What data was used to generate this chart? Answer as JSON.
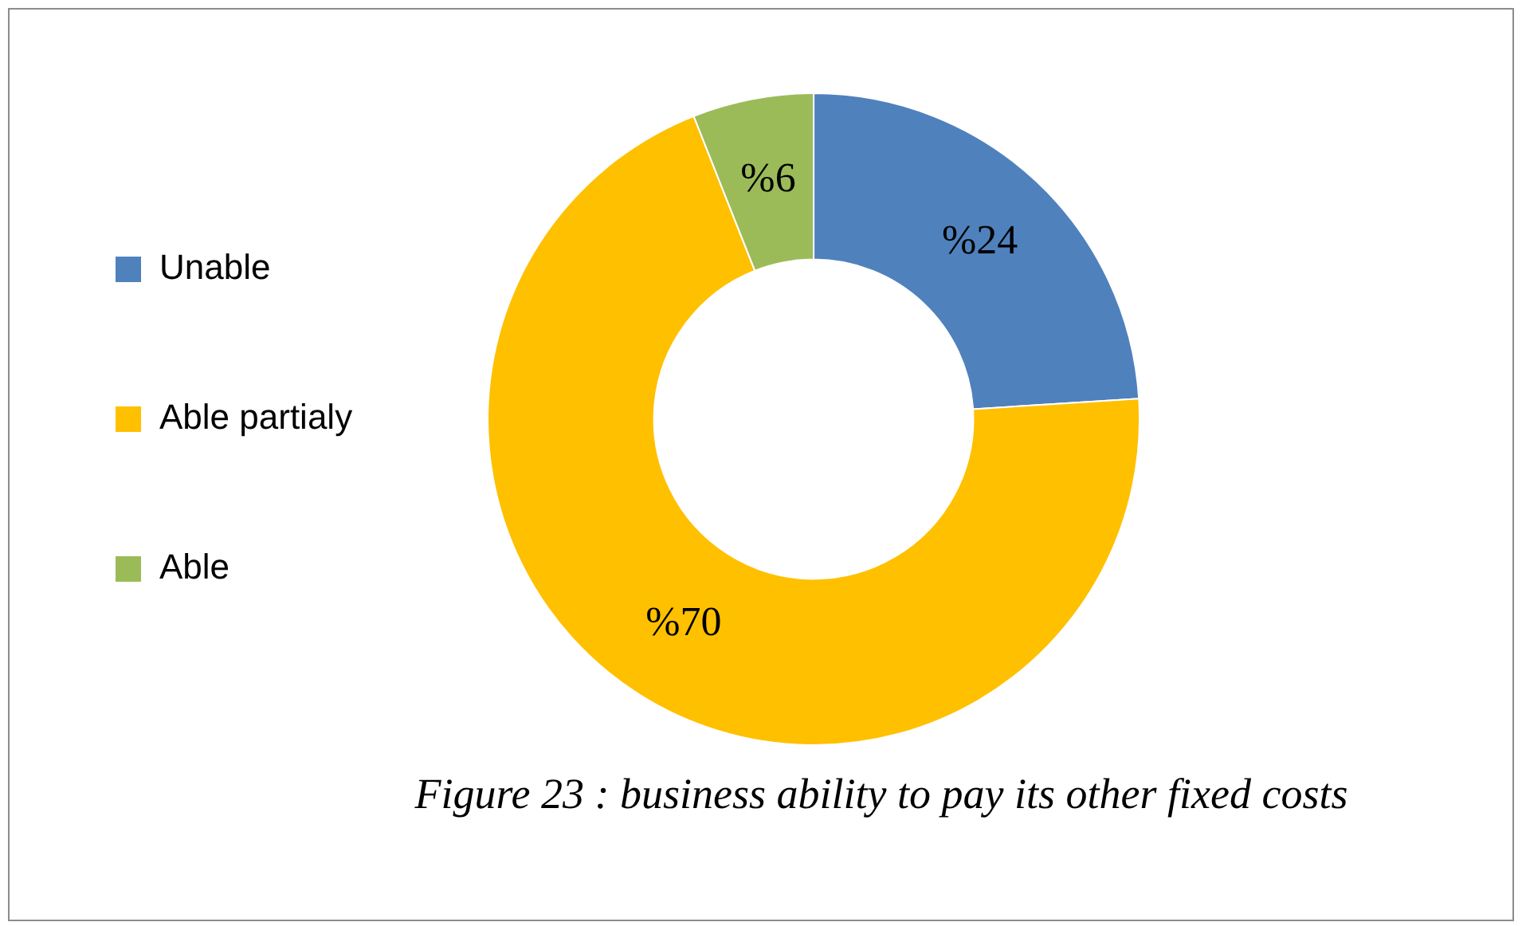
{
  "chart_data": {
    "type": "donut",
    "categories": [
      "Unable",
      "Able partialy",
      "Able"
    ],
    "values": [
      24,
      70,
      6
    ],
    "colors": [
      "#4f81bd",
      "#ffc000",
      "#9bbb59"
    ],
    "value_labels": [
      "%24",
      "%70",
      "%6"
    ],
    "legend": "left",
    "annotations": [
      "Figure 23 : business ability to pay its other fixed costs"
    ]
  }
}
